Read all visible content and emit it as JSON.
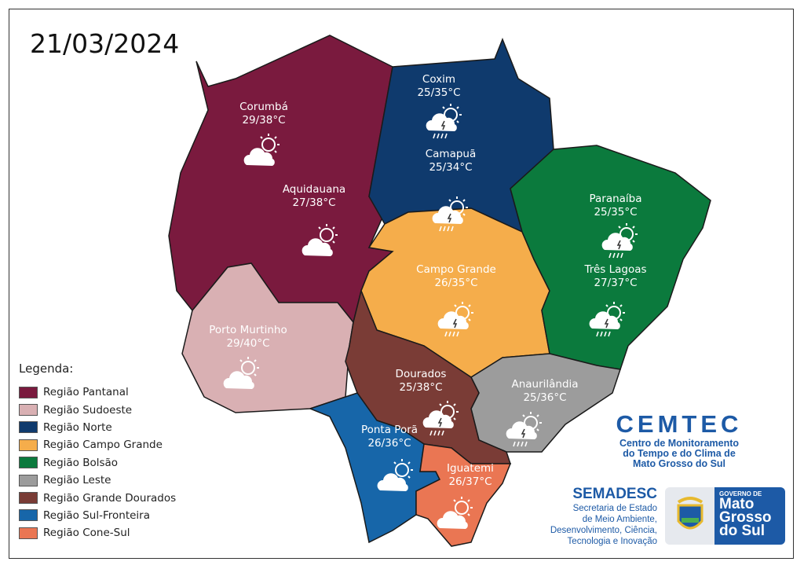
{
  "date": "21/03/2024",
  "regions": [
    {
      "name": "Região Pantanal",
      "color": "#7a1a3e"
    },
    {
      "name": "Região Sudoeste",
      "color": "#d9b0b3"
    },
    {
      "name": "Região Norte",
      "color": "#0f3a6d"
    },
    {
      "name": "Região Campo Grande",
      "color": "#f5ad4b"
    },
    {
      "name": "Região Bolsão",
      "color": "#0b7a3d"
    },
    {
      "name": "Região Leste",
      "color": "#9c9c9c"
    },
    {
      "name": "Região Grande Dourados",
      "color": "#7a3c36"
    },
    {
      "name": "Região Sul-Fronteira",
      "color": "#1766a9"
    },
    {
      "name": "Região Cone-Sul",
      "color": "#ea7653"
    }
  ],
  "legend_title": "Legenda:",
  "cities": [
    {
      "name": "Corumbá",
      "temp": "29/38°C",
      "icon": "sun-cloud"
    },
    {
      "name": "Aquidauana",
      "temp": "27/38°C",
      "icon": "sun-cloud"
    },
    {
      "name": "Coxim",
      "temp": "25/35°C",
      "icon": "thunderstorm"
    },
    {
      "name": "Camapuã",
      "temp": "25/34°C",
      "icon": "thunderstorm"
    },
    {
      "name": "Paranaíba",
      "temp": "25/35°C",
      "icon": "thunderstorm"
    },
    {
      "name": "Três Lagoas",
      "temp": "27/37°C",
      "icon": "thunderstorm"
    },
    {
      "name": "Campo Grande",
      "temp": "26/35°C",
      "icon": "thunderstorm"
    },
    {
      "name": "Porto Murtinho",
      "temp": "29/40°C",
      "icon": "sun-cloud"
    },
    {
      "name": "Dourados",
      "temp": "25/38°C",
      "icon": "thunderstorm"
    },
    {
      "name": "Anaurilândia",
      "temp": "25/36°C",
      "icon": "thunderstorm"
    },
    {
      "name": "Ponta Porã",
      "temp": "26/36°C",
      "icon": "sun-cloud"
    },
    {
      "name": "Iguatemi",
      "temp": "26/37°C",
      "icon": "sun-cloud"
    }
  ],
  "cemtec": {
    "title": "CEMTEC",
    "sub1": "Centro de Monitoramento",
    "sub2": "do Tempo e do Clima de",
    "sub3": "Mato Grosso do Sul"
  },
  "semadesc": {
    "title": "SEMADESC",
    "l1": "Secretaria de Estado",
    "l2": "de Meio Ambiente,",
    "l3": "Desenvolvimento, Ciência,",
    "l4": "Tecnologia e Inovação"
  },
  "gov": {
    "l1": "GOVERNO DE",
    "l2": "Mato",
    "l3": "Grosso",
    "l4": "do Sul"
  }
}
